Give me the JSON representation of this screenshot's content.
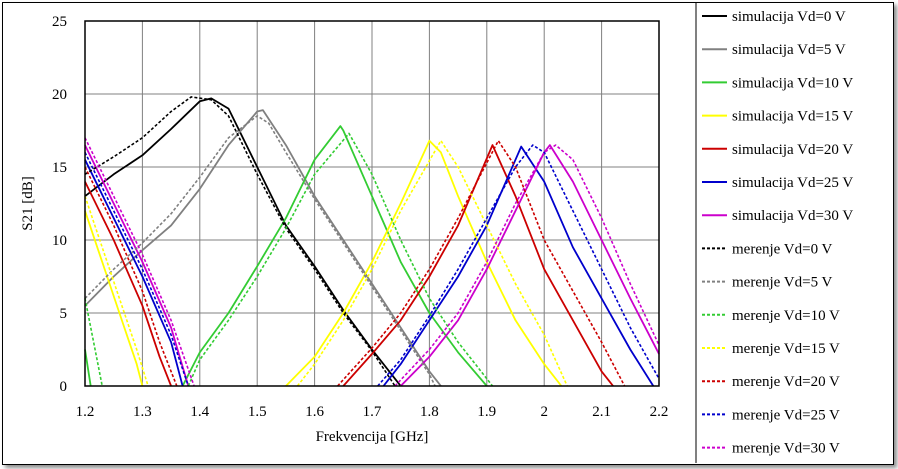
{
  "chart_data": {
    "type": "line",
    "title": "",
    "xlabel": "Frekvencija [GHz]",
    "ylabel": "S21 [dB]",
    "xlim": [
      1.2,
      2.2
    ],
    "ylim": [
      0,
      25
    ],
    "xticks": [
      1.2,
      1.3,
      1.4,
      1.5,
      1.6,
      1.7,
      1.8,
      1.9,
      2.0,
      2.1,
      2.2
    ],
    "xtick_labels": [
      "1.2",
      "1.3",
      "1.4",
      "1.5",
      "1.6",
      "1.7",
      "1.8",
      "1.9",
      "2",
      "2.1",
      "2.2"
    ],
    "yticks": [
      0,
      5,
      10,
      15,
      20,
      25
    ],
    "ytick_labels": [
      "0",
      "5",
      "10",
      "15",
      "20",
      "25"
    ],
    "grid": true,
    "legend_position": "right",
    "series": [
      {
        "name": "simulacija Vd=0 V",
        "color": "#000000",
        "dash": "solid",
        "segments": [
          [
            [
              1.2,
              13
            ],
            [
              1.25,
              14.5
            ],
            [
              1.3,
              15.8
            ],
            [
              1.35,
              17.6
            ],
            [
              1.4,
              19.5
            ],
            [
              1.42,
              19.7
            ],
            [
              1.45,
              19
            ],
            [
              1.5,
              15
            ],
            [
              1.55,
              11
            ],
            [
              1.6,
              8.2
            ],
            [
              1.65,
              5.2
            ],
            [
              1.7,
              2.5
            ],
            [
              1.75,
              0
            ]
          ]
        ]
      },
      {
        "name": "simulacija Vd=5 V",
        "color": "#808080",
        "dash": "solid",
        "segments": [
          [
            [
              1.2,
              5.5
            ],
            [
              1.25,
              7.5
            ],
            [
              1.3,
              9.3
            ],
            [
              1.35,
              11
            ],
            [
              1.4,
              13.5
            ],
            [
              1.45,
              16.5
            ],
            [
              1.5,
              18.8
            ],
            [
              1.51,
              18.9
            ],
            [
              1.55,
              16.5
            ],
            [
              1.6,
              13
            ],
            [
              1.65,
              10
            ],
            [
              1.7,
              7
            ],
            [
              1.75,
              4
            ],
            [
              1.8,
              1
            ],
            [
              1.82,
              0
            ]
          ]
        ]
      },
      {
        "name": "simulacija Vd=10 V",
        "color": "#33cc33",
        "dash": "solid",
        "segments": [
          [
            [
              1.2,
              2.5
            ],
            [
              1.21,
              0
            ]
          ],
          [
            [
              1.37,
              0
            ],
            [
              1.4,
              2.3
            ],
            [
              1.45,
              5
            ],
            [
              1.5,
              8.2
            ],
            [
              1.55,
              11.5
            ],
            [
              1.6,
              15.5
            ],
            [
              1.645,
              17.8
            ],
            [
              1.65,
              17.5
            ],
            [
              1.7,
              13
            ],
            [
              1.75,
              8.5
            ],
            [
              1.8,
              5
            ],
            [
              1.85,
              2.3
            ],
            [
              1.9,
              0
            ]
          ]
        ]
      },
      {
        "name": "simulacija Vd=15 V",
        "color": "#ffff00",
        "dash": "solid",
        "segments": [
          [
            [
              1.2,
              12
            ],
            [
              1.23,
              8.5
            ],
            [
              1.26,
              5
            ],
            [
              1.29,
              1.5
            ],
            [
              1.3,
              0
            ]
          ],
          [
            [
              1.55,
              0
            ],
            [
              1.6,
              2
            ],
            [
              1.65,
              5
            ],
            [
              1.7,
              8.5
            ],
            [
              1.75,
              12.5
            ],
            [
              1.8,
              16.8
            ],
            [
              1.82,
              16
            ],
            [
              1.85,
              13
            ],
            [
              1.9,
              8.5
            ],
            [
              1.95,
              4.5
            ],
            [
              2.0,
              1.5
            ],
            [
              2.03,
              0
            ]
          ]
        ]
      },
      {
        "name": "simulacija Vd=20 V",
        "color": "#cc0000",
        "dash": "solid",
        "segments": [
          [
            [
              1.2,
              14
            ],
            [
              1.25,
              10
            ],
            [
              1.3,
              5.5
            ],
            [
              1.33,
              2
            ],
            [
              1.35,
              0
            ]
          ],
          [
            [
              1.65,
              0
            ],
            [
              1.7,
              2.2
            ],
            [
              1.75,
              4.5
            ],
            [
              1.8,
              7.5
            ],
            [
              1.85,
              11
            ],
            [
              1.91,
              16.5
            ],
            [
              1.95,
              13
            ],
            [
              2.0,
              8
            ],
            [
              2.05,
              4.5
            ],
            [
              2.1,
              1
            ],
            [
              2.12,
              0
            ]
          ]
        ]
      },
      {
        "name": "simulacija Vd=25 V",
        "color": "#0000cc",
        "dash": "solid",
        "segments": [
          [
            [
              1.2,
              15.5
            ],
            [
              1.25,
              11.5
            ],
            [
              1.3,
              7.5
            ],
            [
              1.35,
              3
            ],
            [
              1.37,
              0
            ]
          ],
          [
            [
              1.72,
              0
            ],
            [
              1.75,
              1.5
            ],
            [
              1.8,
              4.5
            ],
            [
              1.85,
              7.5
            ],
            [
              1.9,
              11
            ],
            [
              1.95,
              15.5
            ],
            [
              1.96,
              16.4
            ],
            [
              2.0,
              14
            ],
            [
              2.05,
              9.5
            ],
            [
              2.1,
              6
            ],
            [
              2.15,
              2.5
            ],
            [
              2.19,
              0
            ]
          ]
        ]
      },
      {
        "name": "simulacija Vd=30 V",
        "color": "#cc00cc",
        "dash": "solid",
        "segments": [
          [
            [
              1.2,
              16.5
            ],
            [
              1.25,
              12.5
            ],
            [
              1.3,
              8.5
            ],
            [
              1.35,
              4
            ],
            [
              1.38,
              0
            ]
          ],
          [
            [
              1.75,
              0
            ],
            [
              1.8,
              2
            ],
            [
              1.85,
              4.5
            ],
            [
              1.9,
              8
            ],
            [
              1.95,
              12
            ],
            [
              2.0,
              16
            ],
            [
              2.01,
              16.5
            ],
            [
              2.05,
              14
            ],
            [
              2.1,
              10
            ],
            [
              2.15,
              6
            ],
            [
              2.2,
              2.2
            ]
          ]
        ]
      },
      {
        "name": "merenje Vd=0 V",
        "color": "#000000",
        "dash": "dotted",
        "segments": [
          [
            [
              1.2,
              14.5
            ],
            [
              1.25,
              15.7
            ],
            [
              1.3,
              17
            ],
            [
              1.35,
              18.8
            ],
            [
              1.385,
              19.8
            ],
            [
              1.42,
              19.6
            ],
            [
              1.45,
              18.5
            ],
            [
              1.5,
              14.5
            ],
            [
              1.55,
              10.8
            ],
            [
              1.6,
              8
            ],
            [
              1.65,
              5
            ],
            [
              1.7,
              2.4
            ],
            [
              1.74,
              0
            ]
          ]
        ]
      },
      {
        "name": "merenje Vd=5 V",
        "color": "#808080",
        "dash": "dotted",
        "segments": [
          [
            [
              1.2,
              6
            ],
            [
              1.25,
              8
            ],
            [
              1.3,
              9.8
            ],
            [
              1.35,
              11.8
            ],
            [
              1.4,
              14.3
            ],
            [
              1.45,
              17
            ],
            [
              1.5,
              18.5
            ],
            [
              1.52,
              18
            ],
            [
              1.55,
              16
            ],
            [
              1.6,
              12.8
            ],
            [
              1.65,
              9.8
            ],
            [
              1.7,
              6.8
            ],
            [
              1.75,
              3.8
            ],
            [
              1.8,
              0.8
            ],
            [
              1.81,
              0
            ]
          ]
        ]
      },
      {
        "name": "merenje Vd=10 V",
        "color": "#33cc33",
        "dash": "dotted",
        "segments": [
          [
            [
              1.2,
              6
            ],
            [
              1.22,
              2
            ],
            [
              1.23,
              0
            ]
          ],
          [
            [
              1.38,
              0
            ],
            [
              1.4,
              1.8
            ],
            [
              1.45,
              4.5
            ],
            [
              1.5,
              7.5
            ],
            [
              1.55,
              10.8
            ],
            [
              1.6,
              14.5
            ],
            [
              1.66,
              17.3
            ],
            [
              1.7,
              14.5
            ],
            [
              1.75,
              10
            ],
            [
              1.8,
              6
            ],
            [
              1.85,
              3
            ],
            [
              1.9,
              0.5
            ],
            [
              1.91,
              0
            ]
          ]
        ]
      },
      {
        "name": "merenje Vd=15 V",
        "color": "#ffff00",
        "dash": "dotted",
        "segments": [
          [
            [
              1.2,
              13
            ],
            [
              1.23,
              9.5
            ],
            [
              1.26,
              6
            ],
            [
              1.29,
              2.5
            ],
            [
              1.31,
              0
            ]
          ],
          [
            [
              1.57,
              0
            ],
            [
              1.6,
              1.5
            ],
            [
              1.65,
              4.5
            ],
            [
              1.7,
              8
            ],
            [
              1.75,
              12
            ],
            [
              1.82,
              16.8
            ],
            [
              1.85,
              15
            ],
            [
              1.9,
              11
            ],
            [
              1.95,
              7
            ],
            [
              2.0,
              3.5
            ],
            [
              2.04,
              0
            ]
          ]
        ]
      },
      {
        "name": "merenje Vd=20 V",
        "color": "#cc0000",
        "dash": "dotted",
        "segments": [
          [
            [
              1.2,
              15
            ],
            [
              1.25,
              11
            ],
            [
              1.3,
              6.5
            ],
            [
              1.33,
              3
            ],
            [
              1.36,
              0
            ]
          ],
          [
            [
              1.64,
              0
            ],
            [
              1.7,
              2.6
            ],
            [
              1.75,
              5
            ],
            [
              1.8,
              8
            ],
            [
              1.85,
              11.5
            ],
            [
              1.92,
              16.8
            ],
            [
              1.95,
              15
            ],
            [
              2.0,
              10
            ],
            [
              2.05,
              6.5
            ],
            [
              2.1,
              3
            ],
            [
              2.14,
              0
            ]
          ]
        ]
      },
      {
        "name": "merenje Vd=25 V",
        "color": "#0000cc",
        "dash": "dotted",
        "segments": [
          [
            [
              1.2,
              16
            ],
            [
              1.25,
              12
            ],
            [
              1.3,
              8
            ],
            [
              1.35,
              3.5
            ],
            [
              1.38,
              0
            ]
          ],
          [
            [
              1.71,
              0
            ],
            [
              1.75,
              1.8
            ],
            [
              1.8,
              4.8
            ],
            [
              1.85,
              8
            ],
            [
              1.9,
              11.5
            ],
            [
              1.95,
              15
            ],
            [
              1.98,
              16.5
            ],
            [
              2.0,
              16
            ],
            [
              2.05,
              12
            ],
            [
              2.1,
              8
            ],
            [
              2.15,
              4
            ],
            [
              2.2,
              0.5
            ]
          ]
        ]
      },
      {
        "name": "merenje Vd=30 V",
        "color": "#cc00cc",
        "dash": "dotted",
        "segments": [
          [
            [
              1.2,
              17
            ],
            [
              1.25,
              13
            ],
            [
              1.3,
              9
            ],
            [
              1.35,
              4.5
            ],
            [
              1.39,
              0
            ]
          ],
          [
            [
              1.74,
              0
            ],
            [
              1.8,
              2.5
            ],
            [
              1.85,
              5
            ],
            [
              1.9,
              8.5
            ],
            [
              1.95,
              12.5
            ],
            [
              2.0,
              16
            ],
            [
              2.02,
              16.5
            ],
            [
              2.05,
              15.5
            ],
            [
              2.1,
              11.5
            ],
            [
              2.15,
              7
            ],
            [
              2.2,
              2.8
            ]
          ]
        ]
      }
    ]
  }
}
